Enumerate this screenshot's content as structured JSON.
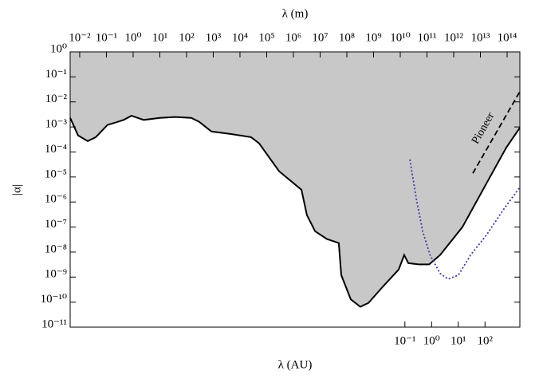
{
  "chart_data": {
    "type": "line",
    "xlabel": "λ (m)",
    "x2label": "λ (AU)",
    "ylabel": "|α|",
    "log_x": true,
    "log_y": true,
    "xlim": [
      0.0044,
      300000000000000.0
    ],
    "x2lim": [
      2.92e-14,
      2020
    ],
    "ylim": [
      1e-11,
      1
    ],
    "xticks": [
      {
        "value": 0.01,
        "label": "10⁻²"
      },
      {
        "value": 0.1,
        "label": "10⁻¹"
      },
      {
        "value": 1,
        "label": "10⁰"
      },
      {
        "value": 10,
        "label": "10¹"
      },
      {
        "value": 100,
        "label": "10²"
      },
      {
        "value": 1000,
        "label": "10³"
      },
      {
        "value": 10000,
        "label": "10⁴"
      },
      {
        "value": 100000,
        "label": "10⁵"
      },
      {
        "value": 1000000,
        "label": "10⁶"
      },
      {
        "value": 10000000.0,
        "label": "10⁷"
      },
      {
        "value": 100000000.0,
        "label": "10⁸"
      },
      {
        "value": 1000000000.0,
        "label": "10⁹"
      },
      {
        "value": 10000000000.0,
        "label": "10¹⁰"
      },
      {
        "value": 100000000000.0,
        "label": "10¹¹"
      },
      {
        "value": 1000000000000.0,
        "label": "10¹²"
      },
      {
        "value": 10000000000000.0,
        "label": "10¹³"
      },
      {
        "value": 100000000000000.0,
        "label": "10¹⁴"
      }
    ],
    "x2ticks": [
      {
        "value": 0.1,
        "label": "10⁻¹"
      },
      {
        "value": 1,
        "label": "10⁰"
      },
      {
        "value": 10,
        "label": "10¹"
      },
      {
        "value": 100,
        "label": "10²"
      }
    ],
    "yticks": [
      {
        "value": 1,
        "label": "10⁰"
      },
      {
        "value": 0.1,
        "label": "10⁻¹"
      },
      {
        "value": 0.01,
        "label": "10⁻²"
      },
      {
        "value": 0.001,
        "label": "10⁻³"
      },
      {
        "value": 0.0001,
        "label": "10⁻⁴"
      },
      {
        "value": 1e-05,
        "label": "10⁻⁵"
      },
      {
        "value": 1e-06,
        "label": "10⁻⁶"
      },
      {
        "value": 1e-07,
        "label": "10⁻⁷"
      },
      {
        "value": 1e-08,
        "label": "10⁻⁸"
      },
      {
        "value": 1e-09,
        "label": "10⁻⁹"
      },
      {
        "value": 1e-10,
        "label": "10⁻¹⁰"
      },
      {
        "value": 1e-11,
        "label": "10⁻¹¹"
      }
    ],
    "series": [
      {
        "color": "#000000",
        "fill": "#c8c8c8",
        "style": "solid",
        "x": [
          0.0044,
          0.0087,
          0.02,
          0.04,
          0.11,
          0.22,
          0.44,
          0.87,
          2.5,
          10,
          38,
          150,
          300,
          850,
          4700,
          26000,
          52000,
          290000,
          2000000.0,
          3200000.0,
          6500000.0,
          18000000.0,
          50000000.0,
          62000000.0,
          140000000.0,
          320000000.0,
          650000000.0,
          2200000000.0,
          8700000000.0,
          14000000000.0,
          20000000000.0,
          49000000000.0,
          120000000000.0,
          310000000000.0,
          2100000000000.0,
          17000000000000.0,
          93000000000000.0,
          300000000000000.0
        ],
        "values": [
          0.0023,
          0.00046,
          0.00027,
          0.00039,
          0.0012,
          0.0015,
          0.0019,
          0.0028,
          0.0019,
          0.0023,
          0.0025,
          0.0023,
          0.0016,
          0.00066,
          0.00052,
          0.00039,
          0.00022,
          1.7e-05,
          3.1e-06,
          3e-07,
          6.8e-08,
          3.3e-08,
          2.3e-08,
          1.2e-09,
          1.3e-10,
          6.5e-11,
          9.3e-11,
          4.1e-10,
          2e-09,
          7.6e-09,
          3.6e-09,
          3.2e-09,
          3.2e-09,
          7.6e-09,
          9.8e-08,
          5.6e-06,
          0.00015,
          0.00093
        ]
      },
      {
        "color": "#3b3ba0",
        "style": "dotted",
        "x": [
          23000000000.0,
          40000000000.0,
          69000000000.0,
          130000000000.0,
          310000000000.0,
          620000000000.0,
          1500000000000.0,
          4300000000000.0,
          17000000000000.0,
          66000000000000.0,
          300000000000000.0
        ],
        "values": [
          5e-05,
          1.3e-06,
          6.8e-08,
          7.6e-09,
          1.4e-09,
          8.3e-10,
          1.2e-09,
          7.6e-09,
          4.8e-08,
          4.3e-07,
          3.9e-06
        ]
      },
      {
        "name": "Pioneer",
        "color": "#000000",
        "style": "dashed",
        "x": [
          5200000000000.0,
          300000000000000.0
        ],
        "values": [
          1.4e-05,
          0.026
        ]
      }
    ]
  }
}
